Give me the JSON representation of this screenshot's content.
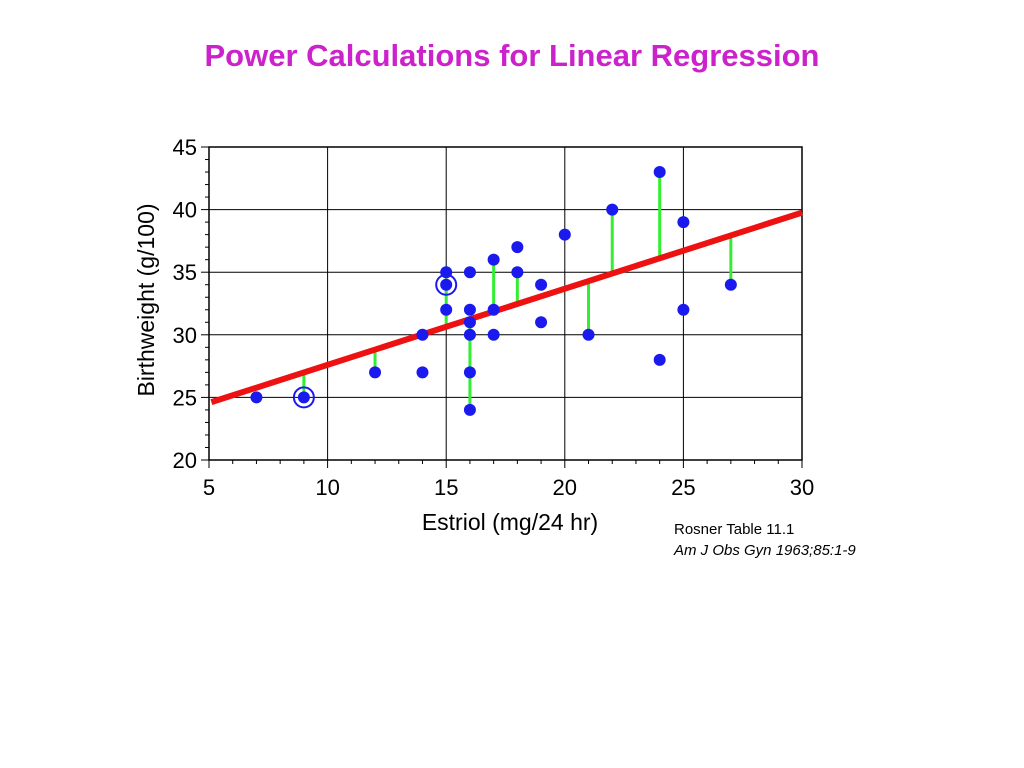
{
  "slide": {
    "title": "Power Calculations for Linear Regression",
    "source_line1": "Rosner Table 11.1",
    "source_line2": "Am  J Obs Gyn 1963;85:1-9"
  },
  "colors": {
    "title": "#cc22cc",
    "points": "#1a1aee",
    "fit_line": "#ee1111",
    "residuals": "#33ee33",
    "grid": "#000000"
  },
  "chart_data": {
    "type": "scatter",
    "title": "",
    "xlabel": "Estriol (mg/24 hr)",
    "ylabel": "Birthweight (g/100)",
    "xlim": [
      5,
      30
    ],
    "ylim": [
      20,
      45
    ],
    "xticks": [
      5,
      10,
      15,
      20,
      25,
      30
    ],
    "yticks": [
      20,
      25,
      30,
      35,
      40,
      45
    ],
    "grid": true,
    "points": [
      {
        "x": 7,
        "y": 25
      },
      {
        "x": 9,
        "y": 25,
        "highlighted": true
      },
      {
        "x": 12,
        "y": 27
      },
      {
        "x": 14,
        "y": 27
      },
      {
        "x": 14,
        "y": 30
      },
      {
        "x": 15,
        "y": 35
      },
      {
        "x": 15,
        "y": 34,
        "highlighted": true
      },
      {
        "x": 15,
        "y": 32
      },
      {
        "x": 16,
        "y": 35
      },
      {
        "x": 16,
        "y": 32
      },
      {
        "x": 16,
        "y": 31
      },
      {
        "x": 16,
        "y": 30
      },
      {
        "x": 16,
        "y": 27
      },
      {
        "x": 16,
        "y": 24
      },
      {
        "x": 17,
        "y": 36
      },
      {
        "x": 17,
        "y": 32
      },
      {
        "x": 17,
        "y": 30
      },
      {
        "x": 18,
        "y": 37
      },
      {
        "x": 18,
        "y": 35
      },
      {
        "x": 19,
        "y": 34
      },
      {
        "x": 19,
        "y": 31
      },
      {
        "x": 20,
        "y": 38
      },
      {
        "x": 21,
        "y": 30
      },
      {
        "x": 22,
        "y": 40
      },
      {
        "x": 24,
        "y": 43
      },
      {
        "x": 24,
        "y": 28
      },
      {
        "x": 25,
        "y": 39
      },
      {
        "x": 25,
        "y": 32
      },
      {
        "x": 27,
        "y": 34
      }
    ],
    "regression_line": {
      "intercept": 21.52,
      "slope": 0.608
    },
    "residual_points": [
      {
        "x": 9,
        "y": 25
      },
      {
        "x": 12,
        "y": 27
      },
      {
        "x": 14,
        "y": 30
      },
      {
        "x": 15,
        "y": 35
      },
      {
        "x": 16,
        "y": 24
      },
      {
        "x": 17,
        "y": 36
      },
      {
        "x": 18,
        "y": 35
      },
      {
        "x": 21,
        "y": 30
      },
      {
        "x": 22,
        "y": 40
      },
      {
        "x": 24,
        "y": 43
      },
      {
        "x": 27,
        "y": 34
      }
    ]
  }
}
